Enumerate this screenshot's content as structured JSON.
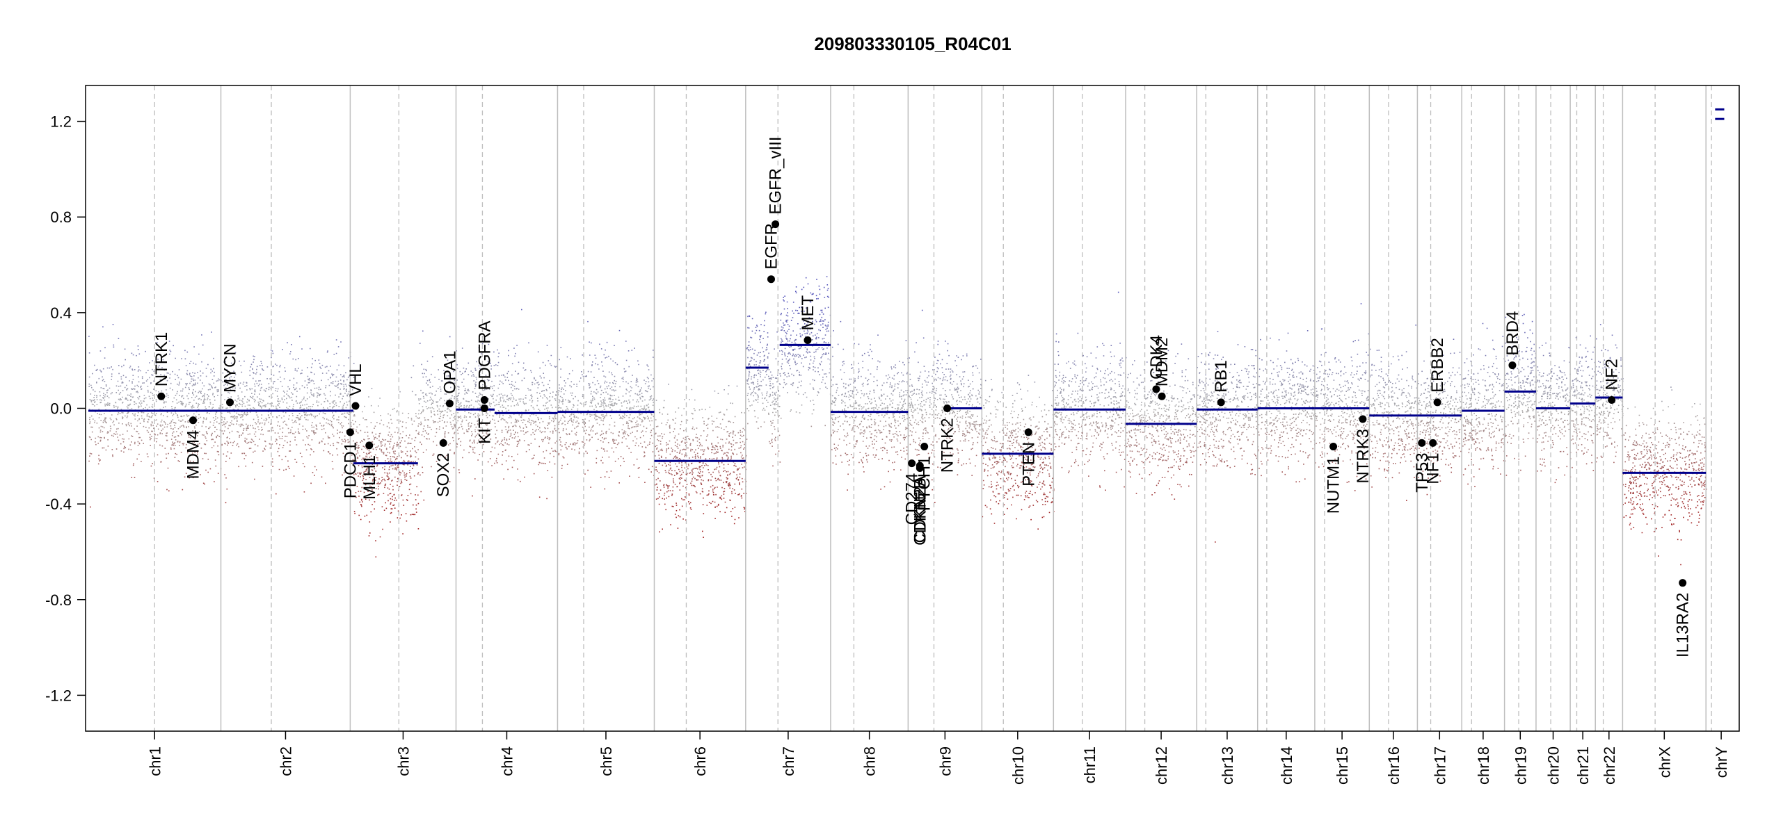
{
  "chart_data": {
    "type": "scatter",
    "title": "209803330105_R04C01",
    "xlabel": "",
    "ylabel": "",
    "ylim": [
      -1.35,
      1.35
    ],
    "y_ticks": [
      -1.2,
      -0.8,
      -0.4,
      0.0,
      0.4,
      0.8,
      1.2
    ],
    "y_tick_labels": [
      "-1.2",
      "-0.8",
      "-0.4",
      "0.0",
      "0.4",
      "0.8",
      "1.2"
    ],
    "chromosomes": [
      {
        "name": "chr1",
        "size": 248,
        "centromere": 0.5
      },
      {
        "name": "chr2",
        "size": 242,
        "centromere": 0.39
      },
      {
        "name": "chr3",
        "size": 198,
        "centromere": 0.46
      },
      {
        "name": "chr4",
        "size": 190,
        "centromere": 0.26
      },
      {
        "name": "chr5",
        "size": 181,
        "centromere": 0.27
      },
      {
        "name": "chr6",
        "size": 171,
        "centromere": 0.35
      },
      {
        "name": "chr7",
        "size": 159,
        "centromere": 0.38
      },
      {
        "name": "chr8",
        "size": 145,
        "centromere": 0.3
      },
      {
        "name": "chr9",
        "size": 138,
        "centromere": 0.35
      },
      {
        "name": "chr10",
        "size": 134,
        "centromere": 0.3
      },
      {
        "name": "chr11",
        "size": 135,
        "centromere": 0.4
      },
      {
        "name": "chr12",
        "size": 133,
        "centromere": 0.27
      },
      {
        "name": "chr13",
        "size": 114,
        "centromere": 0.15
      },
      {
        "name": "chr14",
        "size": 107,
        "centromere": 0.16
      },
      {
        "name": "chr15",
        "size": 102,
        "centromere": 0.18
      },
      {
        "name": "chr16",
        "size": 90,
        "centromere": 0.4
      },
      {
        "name": "chr17",
        "size": 83,
        "centromere": 0.3
      },
      {
        "name": "chr18",
        "size": 80,
        "centromere": 0.23
      },
      {
        "name": "chr19",
        "size": 59,
        "centromere": 0.45
      },
      {
        "name": "chr20",
        "size": 64,
        "centromere": 0.43
      },
      {
        "name": "chr21",
        "size": 47,
        "centromere": 0.26
      },
      {
        "name": "chr22",
        "size": 51,
        "centromere": 0.29
      },
      {
        "name": "chrX",
        "size": 156,
        "centromere": 0.39
      },
      {
        "name": "chrY",
        "size": 57,
        "centromere": 0.18
      }
    ],
    "segments": [
      {
        "chr": "chr1",
        "start": 0.0,
        "end": 1.0,
        "value": -0.01
      },
      {
        "chr": "chr2",
        "start": 0.0,
        "end": 1.0,
        "value": -0.01
      },
      {
        "chr": "chr3",
        "start": 0.0,
        "end": 0.03,
        "value": -0.01
      },
      {
        "chr": "chr3",
        "start": 0.03,
        "end": 0.64,
        "value": -0.23
      },
      {
        "chr": "chr4",
        "start": 0.0,
        "end": 0.38,
        "value": -0.005
      },
      {
        "chr": "chr4",
        "start": 0.38,
        "end": 1.0,
        "value": -0.02
      },
      {
        "chr": "chr5",
        "start": 0.0,
        "end": 1.0,
        "value": -0.015
      },
      {
        "chr": "chr6",
        "start": 0.0,
        "end": 1.0,
        "value": -0.22
      },
      {
        "chr": "chr7",
        "start": 0.0,
        "end": 0.27,
        "value": 0.17
      },
      {
        "chr": "chr7",
        "start": 0.4,
        "end": 1.0,
        "value": 0.265
      },
      {
        "chr": "chr8",
        "start": 0.0,
        "end": 1.0,
        "value": -0.015
      },
      {
        "chr": "chr9",
        "start": 0.5,
        "end": 1.0,
        "value": 0.0
      },
      {
        "chr": "chr10",
        "start": 0.0,
        "end": 1.0,
        "value": -0.19
      },
      {
        "chr": "chr11",
        "start": 0.0,
        "end": 1.0,
        "value": -0.005
      },
      {
        "chr": "chr12",
        "start": 0.0,
        "end": 1.0,
        "value": -0.065
      },
      {
        "chr": "chr13",
        "start": 0.0,
        "end": 1.0,
        "value": -0.005
      },
      {
        "chr": "chr14",
        "start": 0.0,
        "end": 1.0,
        "value": 0.0
      },
      {
        "chr": "chr15",
        "start": 0.0,
        "end": 1.0,
        "value": 0.0
      },
      {
        "chr": "chr16",
        "start": 0.0,
        "end": 1.0,
        "value": -0.03
      },
      {
        "chr": "chr17",
        "start": 0.0,
        "end": 1.0,
        "value": -0.03
      },
      {
        "chr": "chr18",
        "start": 0.0,
        "end": 1.0,
        "value": -0.01
      },
      {
        "chr": "chr19",
        "start": 0.0,
        "end": 1.0,
        "value": 0.07
      },
      {
        "chr": "chr20",
        "start": 0.0,
        "end": 1.0,
        "value": 0.0
      },
      {
        "chr": "chr21",
        "start": 0.0,
        "end": 1.0,
        "value": 0.02
      },
      {
        "chr": "chr22",
        "start": 0.0,
        "end": 1.0,
        "value": 0.045
      },
      {
        "chr": "chrX",
        "start": 0.0,
        "end": 1.0,
        "value": -0.27
      },
      {
        "chr": "chrY",
        "start": 0.3,
        "end": 0.6,
        "value": 1.25
      },
      {
        "chr": "chrY",
        "start": 0.3,
        "end": 0.6,
        "value": 1.21
      }
    ],
    "genes": [
      {
        "name": "NTRK1",
        "chr": "chr1",
        "pos": 0.55,
        "value": 0.05,
        "label_side": "above"
      },
      {
        "name": "MDM4",
        "chr": "chr1",
        "pos": 0.79,
        "value": -0.05,
        "label_side": "below"
      },
      {
        "name": "MYCN",
        "chr": "chr2",
        "pos": 0.07,
        "value": 0.025,
        "label_side": "above"
      },
      {
        "name": "VHL",
        "chr": "chr3",
        "pos": 0.05,
        "value": 0.01,
        "label_side": "above"
      },
      {
        "name": "PDCD1",
        "chr": "chr3",
        "pos": 0.0,
        "value": -0.1,
        "label_side": "below"
      },
      {
        "name": "MLH1",
        "chr": "chr3",
        "pos": 0.18,
        "value": -0.155,
        "label_side": "below"
      },
      {
        "name": "SOX2",
        "chr": "chr3",
        "pos": 0.88,
        "value": -0.145,
        "label_side": "below"
      },
      {
        "name": "OPA1",
        "chr": "chr3",
        "pos": 0.94,
        "value": 0.02,
        "label_side": "above"
      },
      {
        "name": "PDGFRA",
        "chr": "chr4",
        "pos": 0.28,
        "value": 0.035,
        "label_side": "above"
      },
      {
        "name": "KIT",
        "chr": "chr4",
        "pos": 0.28,
        "value": 0.0,
        "label_side": "below"
      },
      {
        "name": "EGFR",
        "chr": "chr7",
        "pos": 0.3,
        "value": 0.54,
        "label_side": "above"
      },
      {
        "name": "EGFR_vIII",
        "chr": "chr7",
        "pos": 0.35,
        "value": 0.77,
        "label_side": "above"
      },
      {
        "name": "MET",
        "chr": "chr7",
        "pos": 0.73,
        "value": 0.285,
        "label_side": "above"
      },
      {
        "name": "CD274",
        "chr": "chr9",
        "pos": 0.05,
        "value": -0.23,
        "label_side": "below"
      },
      {
        "name": "CDKN2A",
        "chr": "chr9",
        "pos": 0.16,
        "value": -0.24,
        "label_side": "below"
      },
      {
        "name": "CDKN2B",
        "chr": "chr9",
        "pos": 0.16,
        "value": -0.25,
        "label_side": "below"
      },
      {
        "name": "PTCH1",
        "chr": "chr9",
        "pos": 0.22,
        "value": -0.16,
        "label_side": "below"
      },
      {
        "name": "NTRK2",
        "chr": "chr9",
        "pos": 0.53,
        "value": 0.0,
        "label_side": "below"
      },
      {
        "name": "PTEN",
        "chr": "chr10",
        "pos": 0.65,
        "value": -0.1,
        "label_side": "below"
      },
      {
        "name": "CDK4",
        "chr": "chr12",
        "pos": 0.43,
        "value": 0.08,
        "label_side": "above"
      },
      {
        "name": "MDM2",
        "chr": "chr12",
        "pos": 0.51,
        "value": 0.05,
        "label_side": "above"
      },
      {
        "name": "RB1",
        "chr": "chr13",
        "pos": 0.4,
        "value": 0.025,
        "label_side": "above"
      },
      {
        "name": "NUTM1",
        "chr": "chr15",
        "pos": 0.34,
        "value": -0.16,
        "label_side": "below"
      },
      {
        "name": "NTRK3",
        "chr": "chr15",
        "pos": 0.88,
        "value": -0.045,
        "label_side": "below"
      },
      {
        "name": "TP53",
        "chr": "chr17",
        "pos": 0.1,
        "value": -0.145,
        "label_side": "below"
      },
      {
        "name": "NF1",
        "chr": "chr17",
        "pos": 0.35,
        "value": -0.145,
        "label_side": "below"
      },
      {
        "name": "ERBB2",
        "chr": "chr17",
        "pos": 0.45,
        "value": 0.025,
        "label_side": "above"
      },
      {
        "name": "BRD4",
        "chr": "chr19",
        "pos": 0.25,
        "value": 0.18,
        "label_side": "above"
      },
      {
        "name": "NF2",
        "chr": "chr22",
        "pos": 0.6,
        "value": 0.035,
        "label_side": "above"
      },
      {
        "name": "IL13RA2",
        "chr": "chrX",
        "pos": 0.72,
        "value": -0.73,
        "label_side": "below"
      }
    ],
    "colors": {
      "segment": "#00008B",
      "gain": "#5555BB",
      "loss": "#A02020",
      "neutral": "#A8A8A8",
      "chr_boundary": "#BEBEBE",
      "centromere": "#BEBEBE",
      "gene_point": "#000000"
    }
  }
}
